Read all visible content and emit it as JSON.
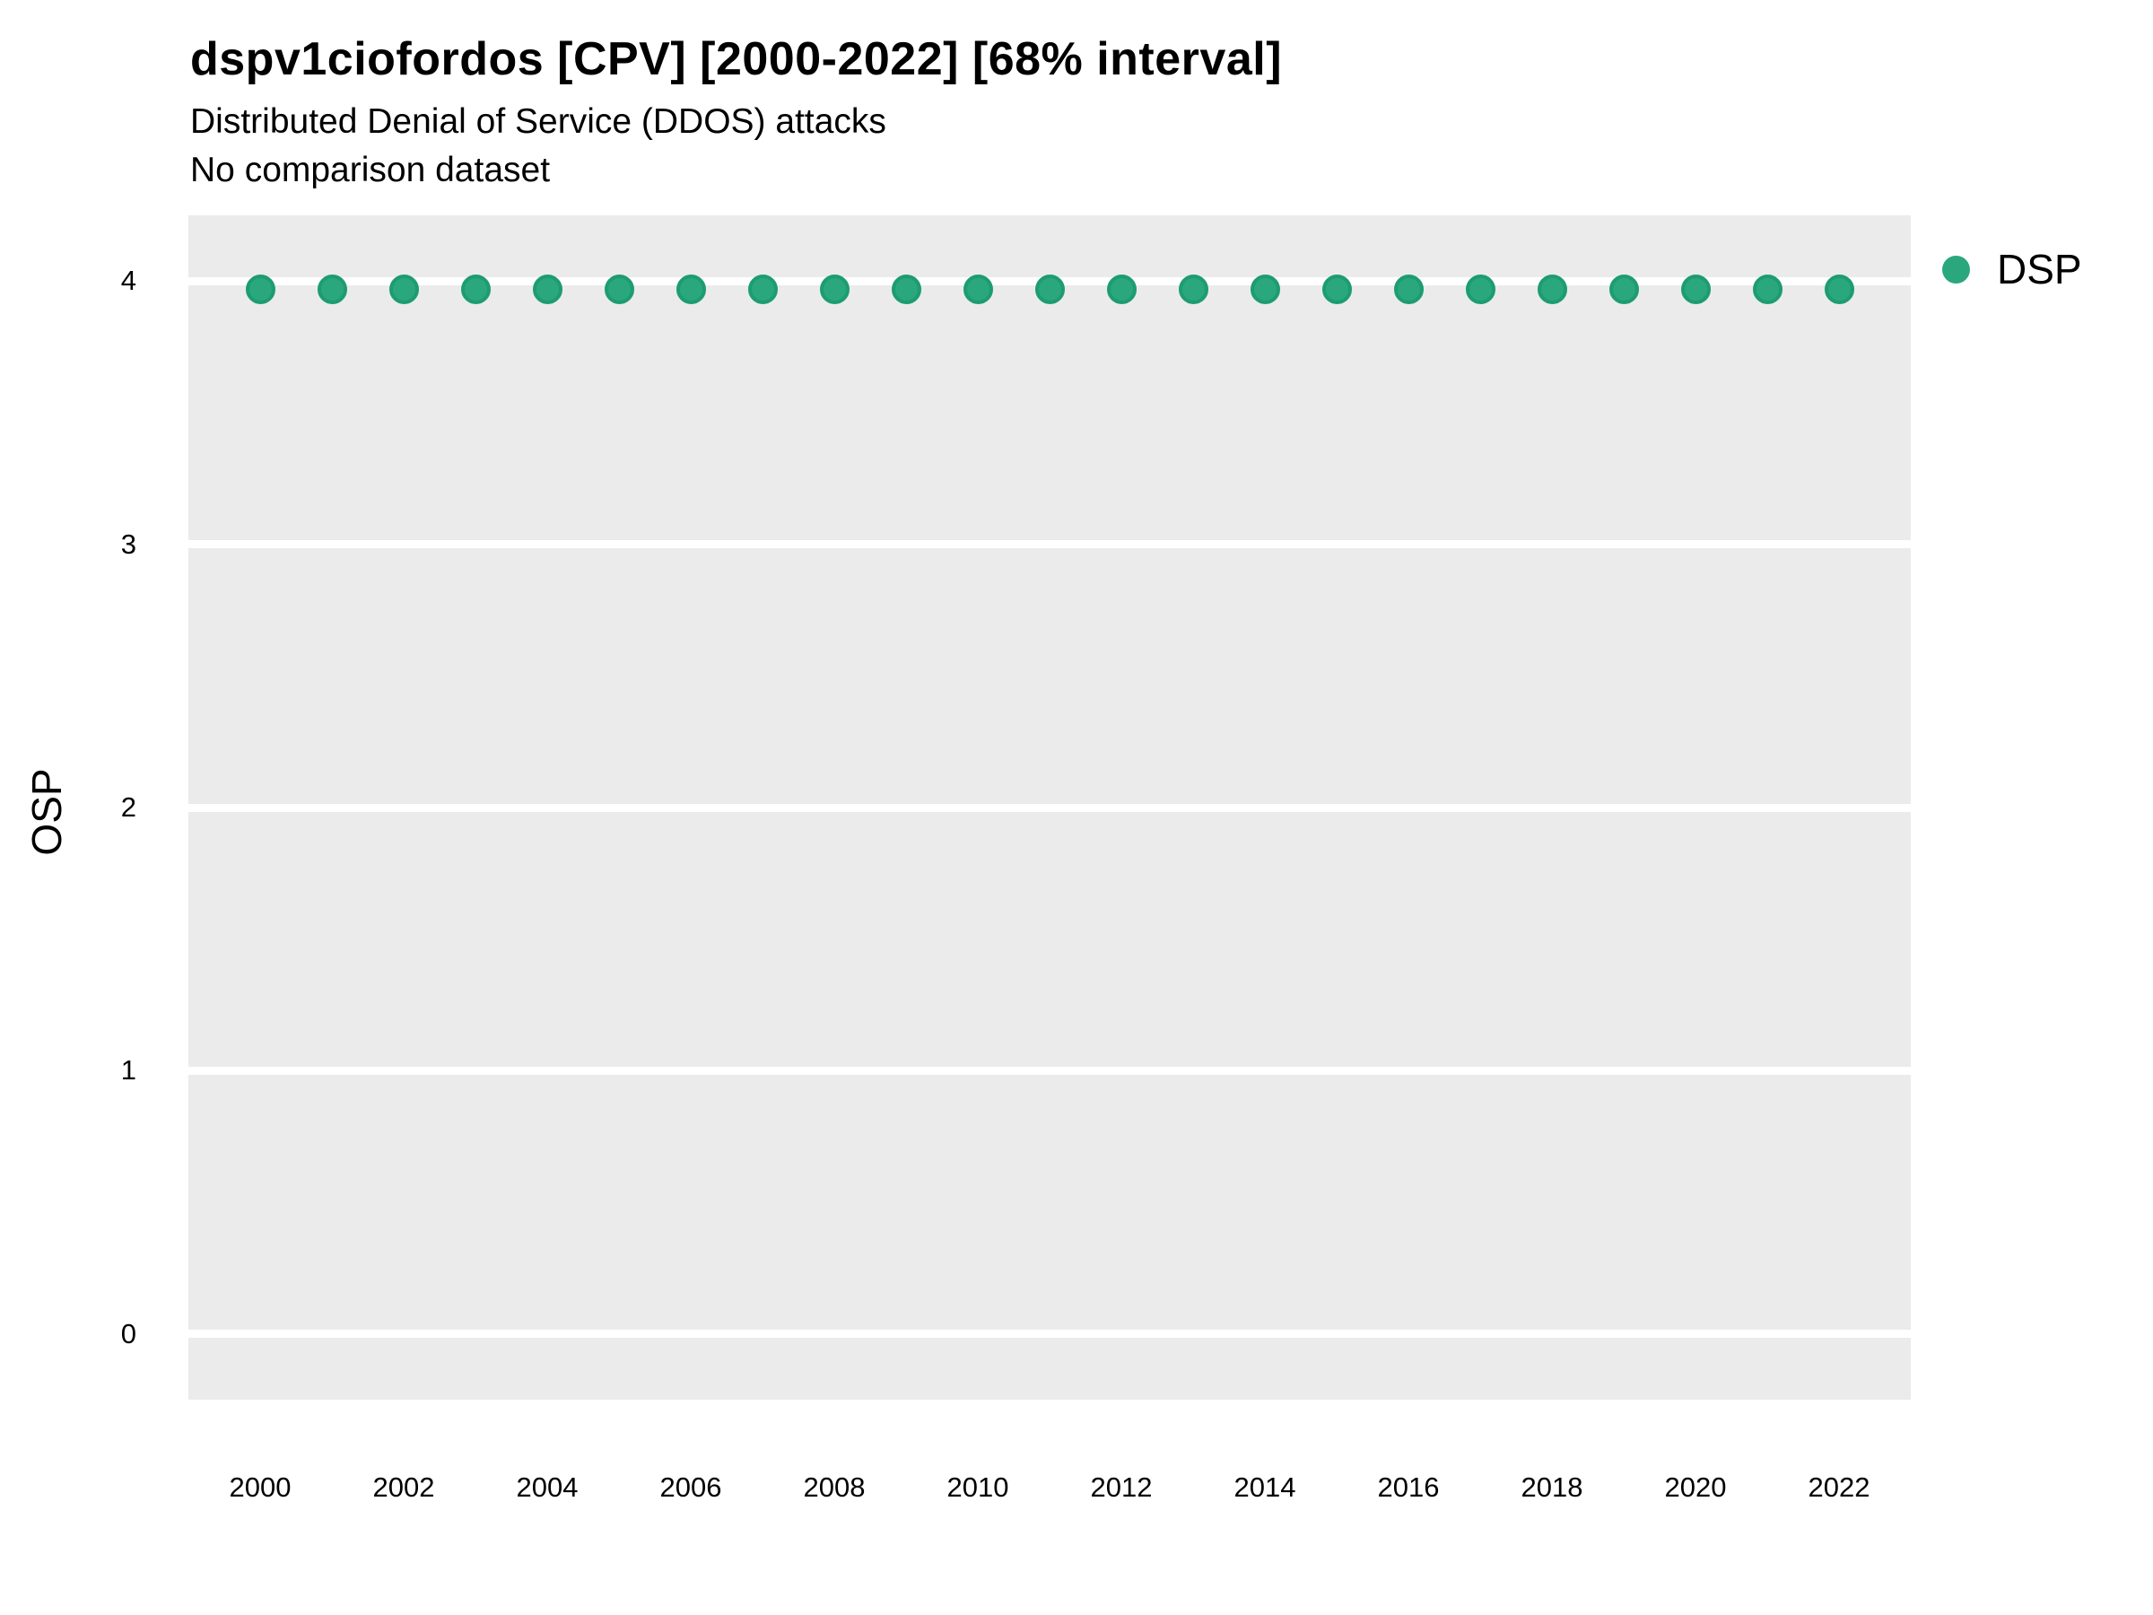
{
  "figure": {
    "title": "dspv1ciofordos [CPV] [2000-2022] [68% interval]",
    "subtitle": "Distributed Denial of Service (DDOS) attacks",
    "subtitle2": "No comparison dataset",
    "y_axis_label": "OSP",
    "legend": {
      "items": [
        {
          "label": "DSP",
          "marker_color": "#2aa77d",
          "marker_stroke": "#1d9c72"
        }
      ]
    },
    "colors": {
      "page_background": "#ffffff",
      "panel_background": "#ebebeb",
      "gridline": "#ffffff",
      "text": "#000000",
      "point_fill": "#2aa77d",
      "point_stroke": "#1d9c72"
    }
  },
  "chart_data": {
    "type": "scatter",
    "title": "dspv1ciofordos [CPV] [2000-2022] [68% interval]",
    "subtitle": "Distributed Denial of Service (DDOS) attacks",
    "subtitle2": "No comparison dataset",
    "xlabel": "",
    "ylabel": "OSP",
    "x": [
      2000,
      2001,
      2002,
      2003,
      2004,
      2005,
      2006,
      2007,
      2008,
      2009,
      2010,
      2011,
      2012,
      2013,
      2014,
      2015,
      2016,
      2017,
      2018,
      2019,
      2020,
      2021,
      2022
    ],
    "series": [
      {
        "name": "DSP",
        "color": "#2aa77d",
        "values": [
          3.97,
          3.97,
          3.97,
          3.97,
          3.97,
          3.97,
          3.97,
          3.97,
          3.97,
          3.97,
          3.97,
          3.97,
          3.97,
          3.97,
          3.97,
          3.97,
          3.97,
          3.97,
          3.97,
          3.97,
          3.97,
          3.97,
          3.97
        ]
      }
    ],
    "xticks": [
      2000,
      2002,
      2004,
      2006,
      2008,
      2010,
      2012,
      2014,
      2016,
      2018,
      2020,
      2022
    ],
    "yticks": [
      0,
      1,
      2,
      3,
      4
    ],
    "xlim": [
      1999,
      2023
    ],
    "ylim": [
      -0.25,
      4.25
    ],
    "grid": "horizontal-major-only",
    "legend_position": "right-top"
  }
}
